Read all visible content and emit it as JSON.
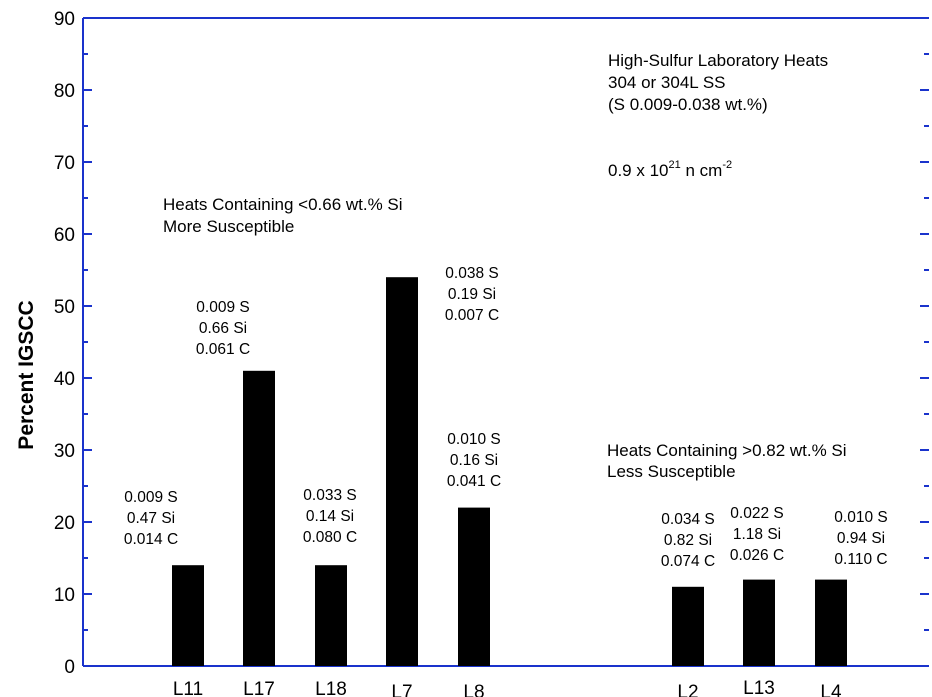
{
  "colors": {
    "axis": "#1a33cc",
    "bar": "#000000",
    "text": "#000000",
    "background": "#ffffff"
  },
  "chart_data": {
    "type": "bar",
    "ylabel": "Percent IGSCC",
    "xlabel": "",
    "ylim": [
      0,
      90
    ],
    "yticks": [
      0,
      10,
      20,
      30,
      40,
      50,
      60,
      70,
      80,
      90
    ],
    "grid": false,
    "categories": [
      "L11",
      "L17",
      "L18",
      "L7",
      "L8",
      "L2",
      "L13",
      "L4"
    ],
    "values": [
      14,
      41,
      14,
      54,
      22,
      11,
      12,
      12
    ],
    "bar_annotations": [
      [
        "0.009 S",
        "0.47 Si",
        "0.014 C"
      ],
      [
        "0.009 S",
        "0.66 Si",
        "0.061 C"
      ],
      [
        "0.033 S",
        "0.14 Si",
        "0.080 C"
      ],
      [
        "0.038 S",
        "0.19 Si",
        "0.007 C"
      ],
      [
        "0.010 S",
        "0.16 Si",
        "0.041 C"
      ],
      [
        "0.034 S",
        "0.82 Si",
        "0.074 C"
      ],
      [
        "0.022 S",
        "1.18 Si",
        "0.026 C"
      ],
      [
        "0.010 S",
        "0.94 Si",
        "0.110 C"
      ]
    ],
    "notes": {
      "top_right": [
        "High-Sulfur Laboratory Heats",
        "304 or 304L SS",
        "(S 0.009-0.038 wt.%)"
      ],
      "fluence": {
        "base": "0.9 x 10",
        "exp": "21",
        "unit": " n cm",
        "unit_exp": "-2"
      },
      "low_si_group": [
        "Heats Containing <0.66 wt.% Si",
        "More Susceptible"
      ],
      "high_si_group": [
        "Heats Containing >0.82 wt.% Si",
        "Less Susceptible"
      ]
    }
  }
}
